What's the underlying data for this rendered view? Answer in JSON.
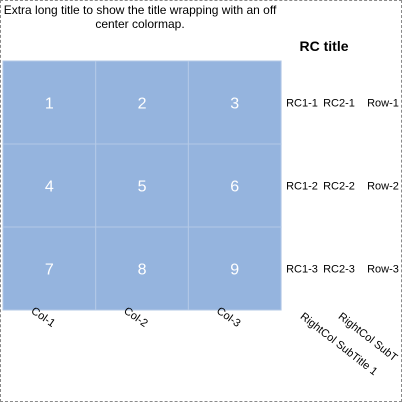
{
  "chart_data": {
    "type": "heatmap",
    "title": "Extra long title to show the title wrapping with an off center colormap.",
    "rc_title": "RC title",
    "values": [
      [
        1,
        2,
        3
      ],
      [
        4,
        5,
        6
      ],
      [
        7,
        8,
        9
      ]
    ],
    "col_labels": [
      "Col-1",
      "Col-2",
      "Col-3"
    ],
    "row_labels": [
      "Row-1",
      "Row-2",
      "Row-3"
    ],
    "rc_columns": [
      [
        "RC1-1",
        "RC1-2",
        "RC1-3"
      ],
      [
        "RC2-1",
        "RC2-2",
        "RC2-3"
      ]
    ],
    "right_subtitles": [
      "RightCol SubTitle 1",
      "RightCol SubT"
    ],
    "cell_color": "#95b4de",
    "grid_color": "#b3c9e6",
    "value_color": "#ffffff"
  }
}
